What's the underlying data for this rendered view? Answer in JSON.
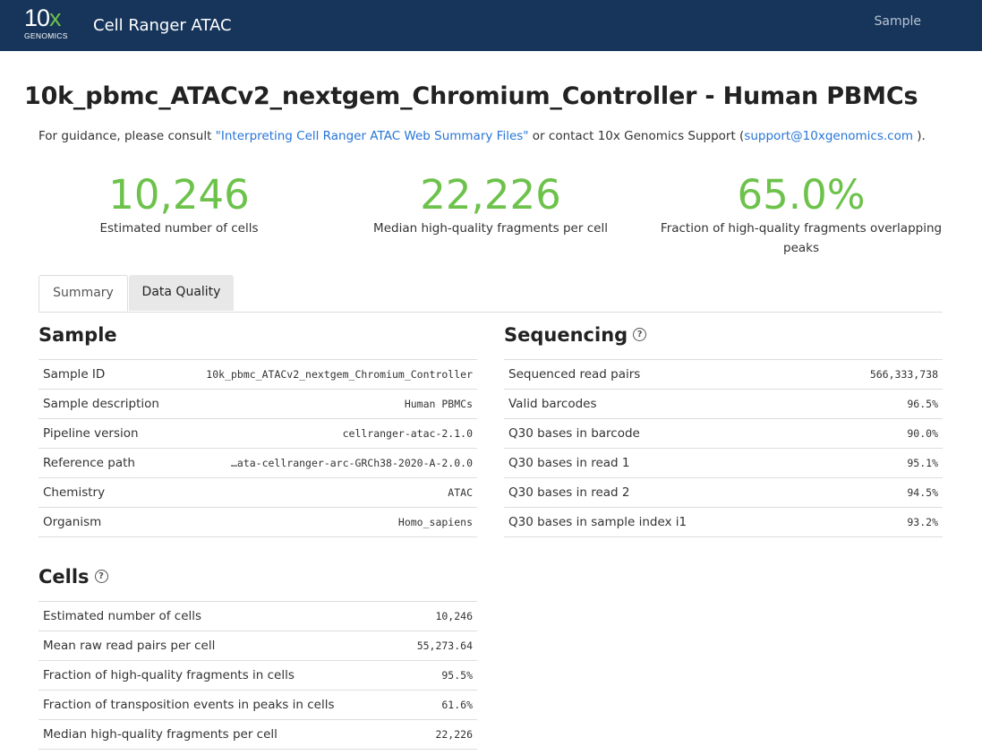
{
  "navbar": {
    "logo_main_digits": "10",
    "logo_main_x": "x",
    "logo_sub": "GENOMICS",
    "app_title": "Cell Ranger ATAC",
    "sample_link": "Sample"
  },
  "header": {
    "title": "10k_pbmc_ATACv2_nextgem_Chromium_Controller - Human PBMCs",
    "guidance_prefix": "For guidance, please consult ",
    "guidance_link": "\"Interpreting Cell Ranger ATAC Web Summary Files\"",
    "guidance_mid": " or contact 10x Genomics Support (",
    "support_email": "support@10xgenomics.com",
    "guidance_suffix": " )."
  },
  "metrics": [
    {
      "value": "10,246",
      "label": "Estimated number of cells"
    },
    {
      "value": "22,226",
      "label": "Median high-quality fragments per cell"
    },
    {
      "value": "65.0%",
      "label": "Fraction of high-quality fragments overlapping peaks"
    }
  ],
  "tabs": [
    {
      "label": "Summary",
      "active": true
    },
    {
      "label": "Data Quality",
      "active": false
    }
  ],
  "sample": {
    "title": "Sample",
    "rows": [
      {
        "key": "Sample ID",
        "value": "10k_pbmc_ATACv2_nextgem_Chromium_Controller"
      },
      {
        "key": "Sample description",
        "value": "Human PBMCs"
      },
      {
        "key": "Pipeline version",
        "value": "cellranger-atac-2.1.0"
      },
      {
        "key": "Reference path",
        "value": "…ata-cellranger-arc-GRCh38-2020-A-2.0.0"
      },
      {
        "key": "Chemistry",
        "value": "ATAC"
      },
      {
        "key": "Organism",
        "value": "Homo_sapiens"
      }
    ]
  },
  "sequencing": {
    "title": "Sequencing",
    "rows": [
      {
        "key": "Sequenced read pairs",
        "value": "566,333,738"
      },
      {
        "key": "Valid barcodes",
        "value": "96.5%"
      },
      {
        "key": "Q30 bases in barcode",
        "value": "90.0%"
      },
      {
        "key": "Q30 bases in read 1",
        "value": "95.1%"
      },
      {
        "key": "Q30 bases in read 2",
        "value": "94.5%"
      },
      {
        "key": "Q30 bases in sample index i1",
        "value": "93.2%"
      }
    ]
  },
  "cells": {
    "title": "Cells",
    "rows": [
      {
        "key": "Estimated number of cells",
        "value": "10,246"
      },
      {
        "key": "Mean raw read pairs per cell",
        "value": "55,273.64"
      },
      {
        "key": "Fraction of high-quality fragments in cells",
        "value": "95.5%"
      },
      {
        "key": "Fraction of transposition events in peaks in cells",
        "value": "61.6%"
      },
      {
        "key": "Median high-quality fragments per cell",
        "value": "22,226"
      }
    ]
  },
  "help_glyph": "?",
  "colors": {
    "navbar": "#17355a",
    "accent_green": "#6cc24a",
    "link_blue": "#2775d6"
  }
}
